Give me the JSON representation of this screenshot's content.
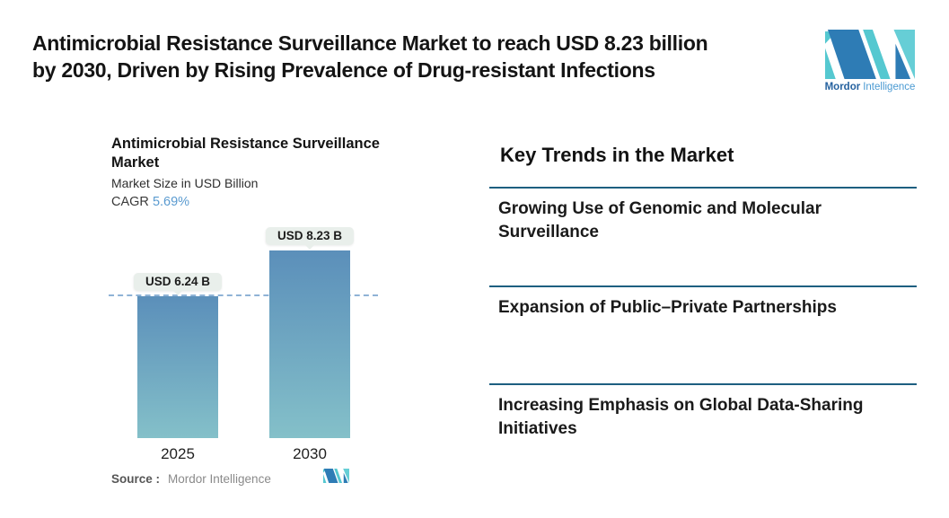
{
  "header": {
    "headline": "Antimicrobial Resistance Surveillance Market to reach USD 8.23 billion by 2030, Driven by Rising Prevalence of Drug-resistant Infections",
    "headline_lines": [
      "Antimicrobial Resistance Surveillance Market to reach USD 8.23 billion",
      "by 2030, Driven by Rising Prevalence of Drug-resistant Infections"
    ]
  },
  "brand": {
    "name_bold": "Mordor",
    "name_light": "Intelligence",
    "colors": {
      "blue": "#2e7cb5",
      "teal": "#55c8d0",
      "teal_light": "#66ced6"
    }
  },
  "chart": {
    "title_lines": [
      "Antimicrobial Resistance Surveillance",
      "Market"
    ],
    "subtitle": "Market Size in USD Billion",
    "cagr_label": "CAGR",
    "cagr_value": "5.69%",
    "source_label": "Source :",
    "source_value": "Mordor Intelligence"
  },
  "chart_data": {
    "type": "bar",
    "title": "Antimicrobial Resistance Surveillance Market",
    "ylabel": "Market Size in USD Billion",
    "categories": [
      "2025",
      "2030"
    ],
    "values": [
      6.24,
      8.23
    ],
    "bar_labels": [
      "USD 6.24 B",
      "USD 8.23 B"
    ],
    "cagr": "5.69%",
    "ylim": [
      0,
      8.23
    ],
    "grid": false,
    "legend": "none",
    "annotations": [
      "horizontal dashed reference line at 2025 value (6.24)"
    ],
    "colors": {
      "bar_gradient_top": "#5b8fba",
      "bar_gradient_bottom": "#84c0c9",
      "dashed_line": "#8fb3d6",
      "callout_bg": "#e9efeb",
      "cagr_value": "#5b9bd0"
    }
  },
  "trends": {
    "heading": "Key Trends in the Market",
    "divider_color": "#1d5f80",
    "items": [
      "Growing Use of Genomic and Molecular Surveillance",
      "Expansion of Public–Private Partnerships",
      "Increasing Emphasis on Global Data-Sharing Initiatives"
    ]
  }
}
